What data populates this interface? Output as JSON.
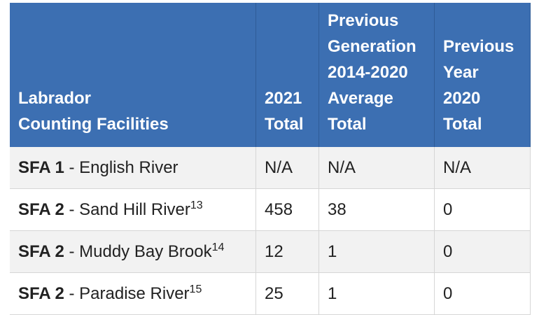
{
  "table": {
    "header": [
      [
        "Labrador",
        "Counting Facilities"
      ],
      [
        "2021",
        "Total"
      ],
      [
        "Previous",
        "Generation",
        "2014-2020",
        "Average",
        "Total"
      ],
      [
        "Previous",
        "Year",
        "2020",
        "Total"
      ]
    ],
    "rows": [
      {
        "area": "SFA 1",
        "site": "- English River",
        "cells": [
          "N/A",
          "N/A",
          "N/A"
        ]
      },
      {
        "area": "SFA 2",
        "site": "- Sand Hill River",
        "note": 13,
        "cells": [
          458,
          38,
          0
        ]
      },
      {
        "area": "SFA 2",
        "site": "- Muddy Bay Brook",
        "note": 14,
        "cells": [
          12,
          1,
          0
        ]
      },
      {
        "area": "SFA 2",
        "site": "- Paradise River",
        "note": 15,
        "cells": [
          25,
          1,
          0
        ]
      }
    ]
  }
}
